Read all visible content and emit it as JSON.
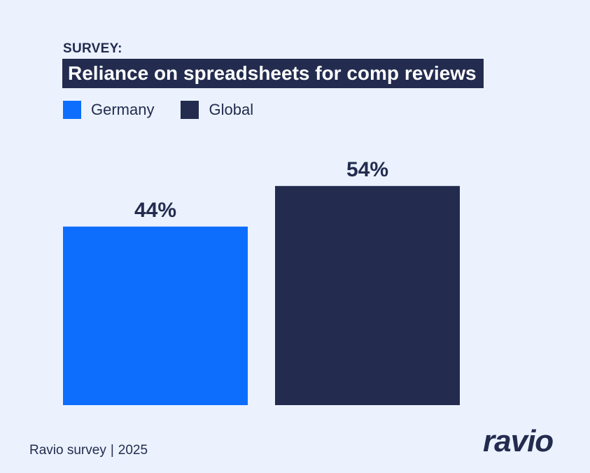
{
  "header": {
    "kicker": "SURVEY:",
    "title": "Reliance on spreadsheets for comp reviews"
  },
  "legend": [
    {
      "label": "Germany",
      "color": "#0d6efd"
    },
    {
      "label": "Global",
      "color": "#232c4f"
    }
  ],
  "chart_data": {
    "type": "bar",
    "categories": [
      "Germany",
      "Global"
    ],
    "values": [
      44,
      54
    ],
    "data_labels": [
      "44%",
      "54%"
    ],
    "colors": [
      "#0d6efd",
      "#232c4f"
    ],
    "title": "Reliance on spreadsheets for comp reviews",
    "ylim": [
      0,
      100
    ],
    "unit": "%",
    "grid": false,
    "legend_position": "top-left"
  },
  "footer": {
    "source": "Ravio survey",
    "year": "2025"
  },
  "brand": {
    "logo_text": "ravio"
  }
}
